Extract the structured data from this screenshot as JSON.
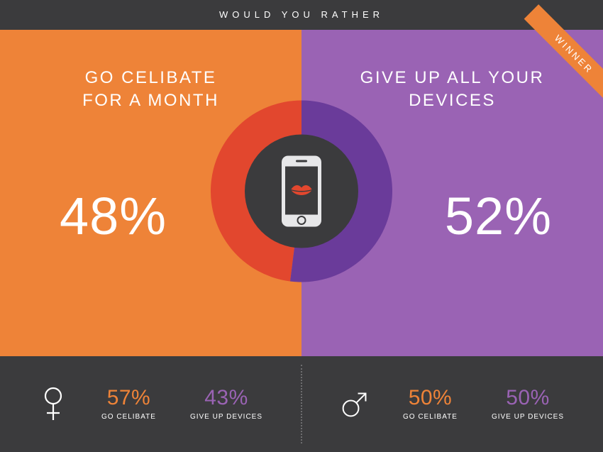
{
  "header": {
    "title": "WOULD YOU RATHER"
  },
  "colors": {
    "header_bg": "#3b3b3d",
    "stats_bg": "#3b3b3d",
    "left_bg": "#ee8338",
    "right_bg": "#9a63b4",
    "pie_left": "#e2472e",
    "pie_right": "#6a3b9a",
    "pie_center": "#3b3b3d",
    "ribbon_bg": "#ee8338",
    "text_white": "#ffffff",
    "divider": "#6d6d6f",
    "lips": "#e2472e",
    "phone_body": "#e7e7e9",
    "phone_screen": "#3b3b3d"
  },
  "pie": {
    "outer_radius": 128,
    "inner_radius": 80,
    "left_percent": 48,
    "right_percent": 52
  },
  "options": {
    "left": {
      "title_line1": "GO CELIBATE",
      "title_line2": "FOR A MONTH",
      "percent": "48%"
    },
    "right": {
      "title_line1": "GIVE UP ALL YOUR",
      "title_line2": "DEVICES",
      "percent": "52%"
    }
  },
  "winner": {
    "side": "right",
    "label": "WINNER"
  },
  "stats": {
    "female": {
      "celibate": {
        "pct": "57%",
        "label": "GO CELIBATE",
        "color": "#ee8338"
      },
      "devices": {
        "pct": "43%",
        "label": "GIVE UP DEVICES",
        "color": "#9a63b4"
      }
    },
    "male": {
      "celibate": {
        "pct": "50%",
        "label": "GO CELIBATE",
        "color": "#ee8338"
      },
      "devices": {
        "pct": "50%",
        "label": "GIVE UP DEVICES",
        "color": "#9a63b4"
      }
    }
  }
}
